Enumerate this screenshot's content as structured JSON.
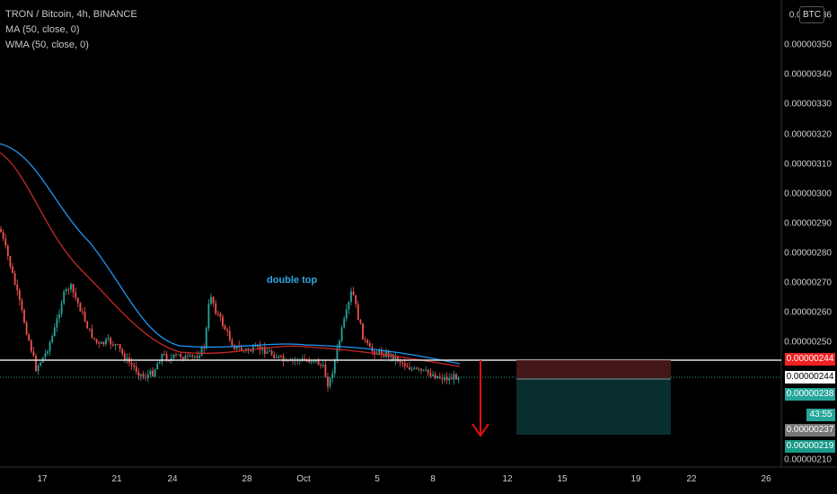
{
  "legend": {
    "symbol": "TRON / Bitcoin, 4h, BINANCE",
    "ma": "MA (50, close, 0)",
    "wma": "WMA (50, close, 0)"
  },
  "currency_button": "BTC",
  "annotation": "double top",
  "price_axis": {
    "top_partial": "0.0000036",
    "labels": [
      "0.00000350",
      "0.00000340",
      "0.00000330",
      "0.00000320",
      "0.00000310",
      "0.00000300",
      "0.00000290",
      "0.00000280",
      "0.00000270",
      "0.00000260",
      "0.00000250",
      "0.00000210"
    ]
  },
  "price_tags": {
    "stop": "0.00000244",
    "last": "0.00000244",
    "current": "0.00000238",
    "countdown": "43:55",
    "ma_value": "0.00000237",
    "target": "0.00000219"
  },
  "time_axis": [
    "17",
    "21",
    "24",
    "28",
    "Oct",
    "5",
    "8",
    "12",
    "15",
    "19",
    "22",
    "26"
  ],
  "colors": {
    "background": "#000000",
    "up": "#26a69a",
    "down": "#ef5350",
    "ma": "#2196f3",
    "wma": "#c62828",
    "arrow": "#e01010"
  },
  "chart_data": {
    "type": "candlestick",
    "title": "TRON / Bitcoin, 4h, BINANCE",
    "ylim": [
      2.1e-06,
      3.63e-06
    ],
    "x_ticks": [
      "17",
      "21",
      "24",
      "28",
      "Oct",
      "5",
      "8",
      "12",
      "15",
      "19",
      "22",
      "26"
    ],
    "series": [
      {
        "name": "MA (50, close, 0)",
        "start": [
          3.16e-06,
          3.08e-06,
          2.96e-06,
          2.83e-06,
          2.72e-06,
          2.62e-06,
          2.54e-06,
          2.49e-06,
          2.48e-06,
          2.48e-06,
          2.48e-06,
          2.48e-06,
          2.48e-06,
          2.45e-06
        ]
      },
      {
        "name": "WMA (50, close, 0)",
        "start": [
          3.11e-06,
          2.97e-06,
          2.8e-06,
          2.7e-06,
          2.61e-06,
          2.53e-06,
          2.48e-06,
          2.47e-06,
          2.47e-06,
          2.47e-06,
          2.47e-06,
          2.47e-06,
          2.46e-06,
          2.44e-06
        ]
      }
    ],
    "horizontal_line": 2.44e-06,
    "short_position": {
      "entry": 2.44e-06,
      "stop": 2.5e-06,
      "target": 2.19e-06
    }
  }
}
